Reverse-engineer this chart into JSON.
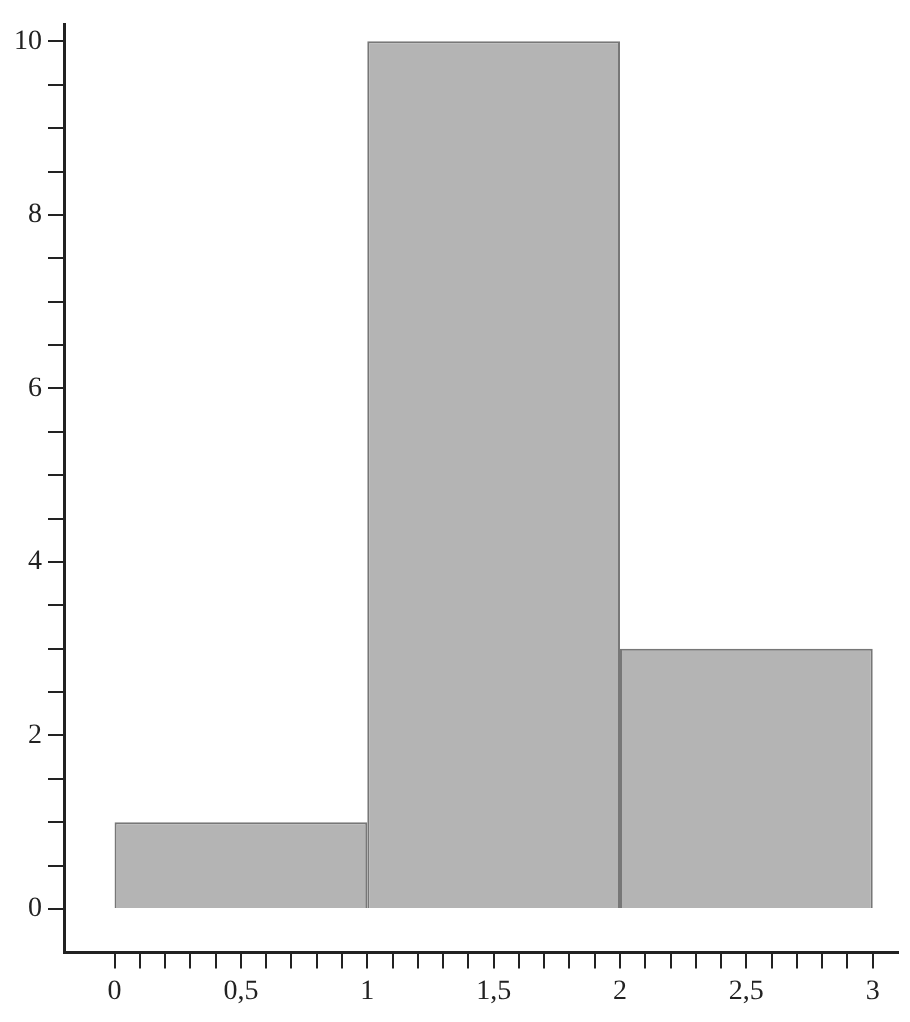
{
  "chart_data": {
    "type": "histogram",
    "bins": [
      0,
      1,
      2,
      3
    ],
    "values": [
      1,
      10,
      3
    ],
    "color": "#b4b4b4",
    "xlim": [
      -0.2,
      3.1
    ],
    "xticks": [
      0,
      {
        "value": 0.1,
        "label": null
      },
      {
        "value": 0.2,
        "label": null
      },
      {
        "value": 0.3,
        "label": null
      },
      {
        "value": 0.4,
        "label": null
      },
      {
        "value": 0.5,
        "label": "0,5"
      },
      {
        "value": 0.6,
        "label": null
      },
      {
        "value": 0.7,
        "label": null
      },
      {
        "value": 0.8,
        "label": null
      },
      {
        "value": 0.9,
        "label": null
      },
      1,
      {
        "value": 1.1,
        "label": null
      },
      {
        "value": 1.2,
        "label": null
      },
      {
        "value": 1.3,
        "label": null
      },
      {
        "value": 1.4,
        "label": null
      },
      {
        "value": 1.5,
        "label": "1,5"
      },
      {
        "value": 1.6,
        "label": null
      },
      {
        "value": 1.7,
        "label": null
      },
      {
        "value": 1.8,
        "label": null
      },
      {
        "value": 1.9,
        "label": null
      },
      2,
      {
        "value": 2.1,
        "label": null
      },
      {
        "value": 2.2,
        "label": null
      },
      {
        "value": 2.3,
        "label": null
      },
      {
        "value": 2.4,
        "label": null
      },
      {
        "value": 2.5,
        "label": "2,5"
      },
      {
        "value": 2.6,
        "label": null
      },
      {
        "value": 2.7,
        "label": null
      },
      {
        "value": 2.8,
        "label": null
      },
      {
        "value": 2.9,
        "label": null
      },
      3
    ],
    "ylim": [
      -0.5,
      10.2
    ],
    "yticks": [
      0,
      {
        "value": 0.5,
        "label": null
      },
      {
        "value": 1,
        "label": null
      },
      {
        "value": 1.5,
        "label": null
      },
      2,
      {
        "value": 2.5,
        "label": null
      },
      {
        "value": 3,
        "label": null
      },
      {
        "value": 3.5,
        "label": null
      },
      4,
      {
        "value": 4.5,
        "label": null
      },
      {
        "value": 5,
        "label": null
      },
      {
        "value": 5.5,
        "label": null
      },
      6,
      {
        "value": 6.5,
        "label": null
      },
      {
        "value": 7,
        "label": null
      },
      {
        "value": 7.5,
        "label": null
      },
      8,
      {
        "value": 8.5,
        "label": null
      },
      {
        "value": 9,
        "label": null
      },
      {
        "value": 9.5,
        "label": null
      },
      10
    ],
    "grid": false,
    "legend": false
  }
}
